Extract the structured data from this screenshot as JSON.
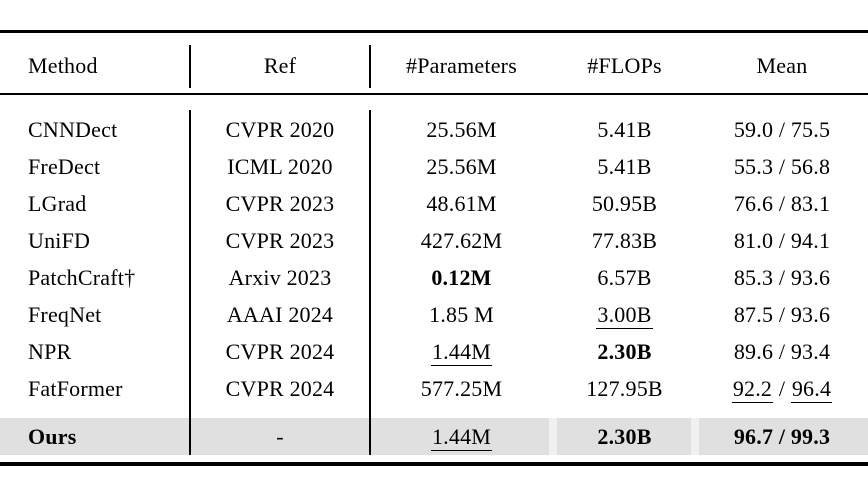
{
  "table": {
    "columns": [
      {
        "label": "Method"
      },
      {
        "label": "Ref"
      },
      {
        "label": "#Parameters"
      },
      {
        "label": "#FLOPs"
      },
      {
        "label": "Mean"
      }
    ],
    "rows": [
      {
        "highlight": false,
        "cells": [
          [
            {
              "text": "CNNDect"
            }
          ],
          [
            {
              "text": "CVPR 2020"
            }
          ],
          [
            {
              "text": "25.56M"
            }
          ],
          [
            {
              "text": "5.41B"
            }
          ],
          [
            {
              "text": "59.0 / 75.5"
            }
          ]
        ]
      },
      {
        "highlight": false,
        "cells": [
          [
            {
              "text": "FreDect"
            }
          ],
          [
            {
              "text": "ICML 2020"
            }
          ],
          [
            {
              "text": "25.56M"
            }
          ],
          [
            {
              "text": "5.41B"
            }
          ],
          [
            {
              "text": "55.3 / 56.8"
            }
          ]
        ]
      },
      {
        "highlight": false,
        "cells": [
          [
            {
              "text": "LGrad"
            }
          ],
          [
            {
              "text": "CVPR 2023"
            }
          ],
          [
            {
              "text": "48.61M"
            }
          ],
          [
            {
              "text": "50.95B"
            }
          ],
          [
            {
              "text": "76.6 / 83.1"
            }
          ]
        ]
      },
      {
        "highlight": false,
        "cells": [
          [
            {
              "text": "UniFD"
            }
          ],
          [
            {
              "text": "CVPR 2023"
            }
          ],
          [
            {
              "text": "427.62M"
            }
          ],
          [
            {
              "text": "77.83B"
            }
          ],
          [
            {
              "text": "81.0 / 94.1"
            }
          ]
        ]
      },
      {
        "highlight": false,
        "cells": [
          [
            {
              "text": "PatchCraft†"
            }
          ],
          [
            {
              "text": "Arxiv 2023"
            }
          ],
          [
            {
              "text": "0.12M",
              "bold": true
            }
          ],
          [
            {
              "text": "6.57B"
            }
          ],
          [
            {
              "text": "85.3 / 93.6"
            }
          ]
        ]
      },
      {
        "highlight": false,
        "cells": [
          [
            {
              "text": "FreqNet"
            }
          ],
          [
            {
              "text": "AAAI 2024"
            }
          ],
          [
            {
              "text": "1.85 M"
            }
          ],
          [
            {
              "text": "3.00B",
              "underline": true
            }
          ],
          [
            {
              "text": "87.5 / 93.6"
            }
          ]
        ]
      },
      {
        "highlight": false,
        "cells": [
          [
            {
              "text": "NPR"
            }
          ],
          [
            {
              "text": "CVPR 2024"
            }
          ],
          [
            {
              "text": "1.44M",
              "underline": true
            }
          ],
          [
            {
              "text": "2.30B",
              "bold": true
            }
          ],
          [
            {
              "text": "89.6 / 93.4"
            }
          ]
        ]
      },
      {
        "highlight": false,
        "cells": [
          [
            {
              "text": "FatFormer"
            }
          ],
          [
            {
              "text": "CVPR 2024"
            }
          ],
          [
            {
              "text": "577.25M"
            }
          ],
          [
            {
              "text": "127.95B"
            }
          ],
          [
            {
              "text": "92.2",
              "underline": true
            },
            {
              "text": " / "
            },
            {
              "text": "96.4",
              "underline": true
            }
          ]
        ]
      },
      {
        "highlight": true,
        "cells": [
          [
            {
              "text": "Ours",
              "bold": true
            }
          ],
          [
            {
              "text": "-"
            }
          ],
          [
            {
              "text": "1.44M",
              "underline": true
            }
          ],
          [
            {
              "text": "2.30B",
              "bold": true
            }
          ],
          [
            {
              "text": "96.7 / 99.3",
              "bold": true
            }
          ]
        ]
      }
    ]
  },
  "colors": {
    "highlight_row": "#e0e0e0",
    "rule": "#000000",
    "text": "#000000"
  }
}
